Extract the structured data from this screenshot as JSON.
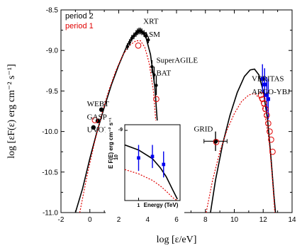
{
  "chart_data": {
    "type": "scatter",
    "title": "",
    "xlabel": "log [ε/eV]",
    "ylabel": "log [εF(ε) erg cm⁻² s⁻¹]",
    "xlim": [
      -2,
      14
    ],
    "ylim": [
      -11.0,
      -8.5
    ],
    "x_ticks": [
      -2,
      0,
      2,
      4,
      6,
      8,
      10,
      12,
      14
    ],
    "x_tick_labels": [
      "-2",
      "0",
      "2",
      "4",
      "6",
      "8",
      "10",
      "12",
      "14"
    ],
    "y_ticks": [
      -11.0,
      -10.5,
      -10.0,
      -9.5,
      -9.0,
      -8.5
    ],
    "y_tick_labels": [
      "-11.0",
      "-10.5",
      "-10.0",
      "-9.5",
      "-9.0",
      "-8.5"
    ],
    "legend": {
      "position": "top-left",
      "entries": [
        {
          "label": "period 2",
          "color": "#000000"
        },
        {
          "label": "period 1",
          "color": "#e00000"
        }
      ]
    },
    "annotations": [
      {
        "text": "XRT",
        "x": 3.7,
        "y": -8.67
      },
      {
        "text": "ASM",
        "x": 3.7,
        "y": -8.83
      },
      {
        "text": "SuperAGILE",
        "x": 4.6,
        "y": -9.15
      },
      {
        "text": "BAT",
        "x": 4.6,
        "y": -9.31
      },
      {
        "text": "WEBT",
        "x": -0.2,
        "y": -9.69
      },
      {
        "text": "GASP",
        "x": -0.2,
        "y": -9.85
      },
      {
        "text": "UVOT",
        "x": -0.2,
        "y": -10.01
      },
      {
        "text": "GRID",
        "x": 7.2,
        "y": -10.0
      },
      {
        "text": "VERITAS",
        "x": 11.2,
        "y": -9.38
      },
      {
        "text": "ARGO-YBJ",
        "x": 11.2,
        "y": -9.54
      }
    ],
    "series": [
      {
        "name": "period 2",
        "kind": "points",
        "marker": "filled-circle",
        "color": "#000000",
        "points": [
          {
            "x": 0.25,
            "y": -9.95
          },
          {
            "x": 0.55,
            "y": -9.87
          },
          {
            "x": 0.8,
            "y": -9.73
          }
        ]
      },
      {
        "name": "period 2",
        "kind": "points",
        "marker": "small-filled",
        "color": "#000000",
        "points": [
          {
            "x": 2.6,
            "y": -8.95,
            "yerr": 0.04
          },
          {
            "x": 2.75,
            "y": -8.9,
            "yerr": 0.04
          },
          {
            "x": 2.9,
            "y": -8.85,
            "yerr": 0.04
          },
          {
            "x": 3.05,
            "y": -8.82,
            "yerr": 0.04
          },
          {
            "x": 3.2,
            "y": -8.79,
            "yerr": 0.04
          },
          {
            "x": 3.3,
            "y": -8.77,
            "yerr": 0.04
          },
          {
            "x": 3.4,
            "y": -8.76,
            "yerr": 0.04
          },
          {
            "x": 3.5,
            "y": -8.76,
            "yerr": 0.04
          },
          {
            "x": 3.6,
            "y": -8.77,
            "yerr": 0.04
          },
          {
            "x": 3.75,
            "y": -8.79,
            "yerr": 0.04
          },
          {
            "x": 3.9,
            "y": -8.82,
            "yerr": 0.04
          },
          {
            "x": 4.05,
            "y": -8.87,
            "yerr": 0.04
          },
          {
            "x": 4.3,
            "y": -9.2,
            "yerr": 0.08
          },
          {
            "x": 4.45,
            "y": -9.3,
            "yerr": 0.1
          },
          {
            "x": 4.6,
            "y": -9.43,
            "yerr": 0.12
          }
        ]
      },
      {
        "name": "period 2",
        "kind": "points",
        "marker": "filled-circle",
        "color": "#000000",
        "points": [
          {
            "x": 8.7,
            "y": -10.12,
            "xerr": 0.8,
            "yerr": 0.12
          }
        ]
      },
      {
        "name": "period 2",
        "kind": "points",
        "marker": "filled-square",
        "color": "#0000ee",
        "points": [
          {
            "x": 11.95,
            "y": -9.35,
            "yerr": 0.18
          },
          {
            "x": 12.1,
            "y": -9.42,
            "yerr": 0.2
          },
          {
            "x": 12.25,
            "y": -9.55,
            "yerr": 0.22
          },
          {
            "x": 12.35,
            "y": -9.6,
            "yerr": 0.25
          }
        ]
      },
      {
        "name": "period 2",
        "kind": "curve",
        "style": "solid",
        "color": "#000000",
        "points": [
          {
            "x": -1.0,
            "y": -11.0
          },
          {
            "x": -0.5,
            "y": -10.7
          },
          {
            "x": 0.0,
            "y": -10.33
          },
          {
            "x": 0.5,
            "y": -10.0
          },
          {
            "x": 1.0,
            "y": -9.7
          },
          {
            "x": 1.5,
            "y": -9.42
          },
          {
            "x": 2.0,
            "y": -9.18
          },
          {
            "x": 2.5,
            "y": -8.97
          },
          {
            "x": 3.0,
            "y": -8.82
          },
          {
            "x": 3.3,
            "y": -8.77
          },
          {
            "x": 3.6,
            "y": -8.77
          },
          {
            "x": 3.9,
            "y": -8.85
          },
          {
            "x": 4.2,
            "y": -9.05
          },
          {
            "x": 4.5,
            "y": -9.45
          },
          {
            "x": 4.7,
            "y": -9.95
          },
          {
            "x": 4.85,
            "y": -10.6
          },
          {
            "x": 4.95,
            "y": -11.0
          }
        ]
      },
      {
        "name": "period 2",
        "kind": "curve",
        "style": "solid",
        "color": "#000000",
        "points": [
          {
            "x": 8.35,
            "y": -11.0
          },
          {
            "x": 8.7,
            "y": -10.6
          },
          {
            "x": 9.2,
            "y": -10.15
          },
          {
            "x": 9.7,
            "y": -9.8
          },
          {
            "x": 10.2,
            "y": -9.52
          },
          {
            "x": 10.7,
            "y": -9.32
          },
          {
            "x": 11.1,
            "y": -9.24
          },
          {
            "x": 11.4,
            "y": -9.23
          },
          {
            "x": 11.7,
            "y": -9.3
          },
          {
            "x": 12.0,
            "y": -9.5
          },
          {
            "x": 12.3,
            "y": -9.85
          },
          {
            "x": 12.55,
            "y": -10.35
          },
          {
            "x": 12.75,
            "y": -10.8
          },
          {
            "x": 12.85,
            "y": -11.0
          }
        ]
      },
      {
        "name": "period 1",
        "kind": "points",
        "marker": "open-circle",
        "color": "#e00000",
        "points": [
          {
            "x": 0.35,
            "y": -9.86
          },
          {
            "x": 3.35,
            "y": -8.94
          },
          {
            "x": 4.6,
            "y": -9.6
          },
          {
            "x": 8.75,
            "y": -10.13
          }
        ]
      },
      {
        "name": "period 1",
        "kind": "points",
        "marker": "open-circle",
        "color": "#e00000",
        "points": [
          {
            "x": 11.85,
            "y": -9.55
          },
          {
            "x": 11.95,
            "y": -9.6
          },
          {
            "x": 12.05,
            "y": -9.65
          },
          {
            "x": 12.15,
            "y": -9.72
          },
          {
            "x": 12.25,
            "y": -9.8
          },
          {
            "x": 12.35,
            "y": -9.9
          },
          {
            "x": 12.45,
            "y": -10.0
          },
          {
            "x": 12.55,
            "y": -10.1
          },
          {
            "x": 12.65,
            "y": -10.25
          }
        ]
      },
      {
        "name": "period 1",
        "kind": "curve",
        "style": "dotted",
        "color": "#e00000",
        "points": [
          {
            "x": -0.7,
            "y": -11.0
          },
          {
            "x": -0.2,
            "y": -10.55
          },
          {
            "x": 0.3,
            "y": -10.15
          },
          {
            "x": 0.8,
            "y": -9.8
          },
          {
            "x": 1.3,
            "y": -9.5
          },
          {
            "x": 1.8,
            "y": -9.25
          },
          {
            "x": 2.3,
            "y": -9.05
          },
          {
            "x": 2.8,
            "y": -8.93
          },
          {
            "x": 3.2,
            "y": -8.88
          },
          {
            "x": 3.5,
            "y": -8.88
          },
          {
            "x": 3.8,
            "y": -8.96
          },
          {
            "x": 4.1,
            "y": -9.15
          },
          {
            "x": 4.4,
            "y": -9.5
          },
          {
            "x": 4.6,
            "y": -9.95
          },
          {
            "x": 4.75,
            "y": -10.5
          },
          {
            "x": 4.85,
            "y": -11.0
          }
        ]
      },
      {
        "name": "period 1",
        "kind": "curve",
        "style": "dotted",
        "color": "#e00000",
        "points": [
          {
            "x": 8.05,
            "y": -11.0
          },
          {
            "x": 8.5,
            "y": -10.6
          },
          {
            "x": 9.0,
            "y": -10.25
          },
          {
            "x": 9.5,
            "y": -9.98
          },
          {
            "x": 10.0,
            "y": -9.78
          },
          {
            "x": 10.5,
            "y": -9.63
          },
          {
            "x": 11.0,
            "y": -9.55
          },
          {
            "x": 11.4,
            "y": -9.53
          },
          {
            "x": 11.8,
            "y": -9.6
          },
          {
            "x": 12.1,
            "y": -9.78
          },
          {
            "x": 12.4,
            "y": -10.1
          },
          {
            "x": 12.6,
            "y": -10.5
          },
          {
            "x": 12.75,
            "y": -10.85
          },
          {
            "x": 12.8,
            "y": -11.0
          }
        ]
      }
    ],
    "inset": {
      "type": "line",
      "xlabel": "Energy (TeV)",
      "ylabel": "E F(E) erg cm⁻² s⁻¹",
      "x_tick_labels": [
        "1"
      ],
      "y_tick_labels": [
        "10⁻¹⁰",
        "10⁻⁹"
      ],
      "x_range": [
        0.5,
        8
      ],
      "y_range": [
        0.05,
        1.1
      ],
      "ylabel_power_top": "-9",
      "ylabel_power_bottom": "10",
      "series": [
        {
          "name": "period 2",
          "kind": "curve",
          "style": "solid",
          "color": "#000000",
          "points": [
            {
              "x": 0.5,
              "y": 0.82
            },
            {
              "x": 1.0,
              "y": 0.75
            },
            {
              "x": 2.0,
              "y": 0.63
            },
            {
              "x": 3.0,
              "y": 0.5
            },
            {
              "x": 4.0,
              "y": 0.38
            },
            {
              "x": 5.5,
              "y": 0.2
            },
            {
              "x": 7.0,
              "y": 0.07
            }
          ]
        },
        {
          "name": "period 1",
          "kind": "curve",
          "style": "dotted",
          "color": "#e00000",
          "points": [
            {
              "x": 0.5,
              "y": 0.48
            },
            {
              "x": 1.0,
              "y": 0.42
            },
            {
              "x": 2.0,
              "y": 0.33
            },
            {
              "x": 3.0,
              "y": 0.25
            },
            {
              "x": 4.0,
              "y": 0.18
            },
            {
              "x": 5.5,
              "y": 0.09
            },
            {
              "x": 7.0,
              "y": 0.05
            }
          ]
        },
        {
          "name": "period 2",
          "kind": "points",
          "marker": "filled-square",
          "color": "#0000ee",
          "points": [
            {
              "x": 1.0,
              "y": 0.64,
              "yerr": 0.18
            },
            {
              "x": 2.0,
              "y": 0.66,
              "yerr": 0.16
            },
            {
              "x": 3.5,
              "y": 0.55,
              "yerr": 0.18
            }
          ]
        }
      ]
    }
  }
}
